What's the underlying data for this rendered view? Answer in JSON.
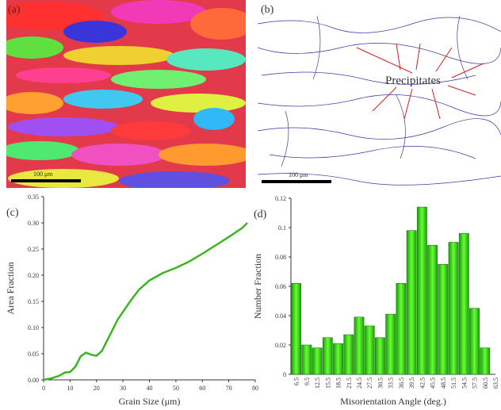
{
  "image_panels": [
    {
      "label": "(a)",
      "scale_bar": "100 μm"
    },
    {
      "label": "(b)",
      "scale_bar": "100 μm",
      "annotation": "Precipitates"
    }
  ],
  "chart_data": [
    {
      "type": "line",
      "label": "(c)",
      "xlabel": "Grain Size (μm)",
      "ylabel": "Area Fraction",
      "color": "#3cb521",
      "x": [
        0,
        3,
        6,
        8,
        10,
        12,
        14,
        16,
        18,
        20,
        22,
        25,
        28,
        30,
        33,
        36,
        40,
        45,
        50,
        55,
        60,
        65,
        70,
        75,
        77
      ],
      "values": [
        0,
        0.003,
        0.008,
        0.014,
        0.015,
        0.025,
        0.045,
        0.052,
        0.048,
        0.046,
        0.055,
        0.085,
        0.115,
        0.13,
        0.152,
        0.172,
        0.19,
        0.204,
        0.214,
        0.226,
        0.241,
        0.257,
        0.273,
        0.29,
        0.3
      ],
      "xlim": [
        0,
        80
      ],
      "xticks": [
        0,
        10,
        20,
        30,
        40,
        50,
        60,
        70,
        80
      ],
      "ylim": [
        0,
        0.35
      ],
      "yticks": [
        {
          "value": 0,
          "label": "0.00"
        },
        0.05,
        {
          "value": 0.1,
          "label": "0.10"
        },
        0.15,
        {
          "value": 0.2,
          "label": "0.20"
        },
        0.25,
        {
          "value": 0.3,
          "label": "0.30"
        },
        0.35
      ]
    },
    {
      "type": "bar",
      "label": "(d)",
      "xlabel": "Misorientation Angle (deg.)",
      "ylabel": "Number Fraction",
      "color": "#44dd11",
      "categories": [
        "6.5",
        "9.5",
        "12.5",
        "15.5",
        "18.5",
        "21.5",
        "24.5",
        "27.5",
        "30.5",
        "33.5",
        "36.5",
        "39.5",
        "42.5",
        "45.5",
        "48.5",
        "51.5",
        "54.5",
        "57.5",
        "60.5",
        "63.5"
      ],
      "values": [
        0.062,
        0.02,
        0.018,
        0.025,
        0.021,
        0.027,
        0.039,
        0.033,
        0.025,
        0.041,
        0.062,
        0.098,
        0.114,
        0.088,
        0.075,
        0.09,
        0.096,
        0.045,
        0.018,
        null
      ],
      "ylim": [
        0,
        0.12
      ],
      "yticks": [
        0,
        0.02,
        0.04,
        0.06,
        0.08,
        0.1,
        0.12
      ]
    }
  ]
}
